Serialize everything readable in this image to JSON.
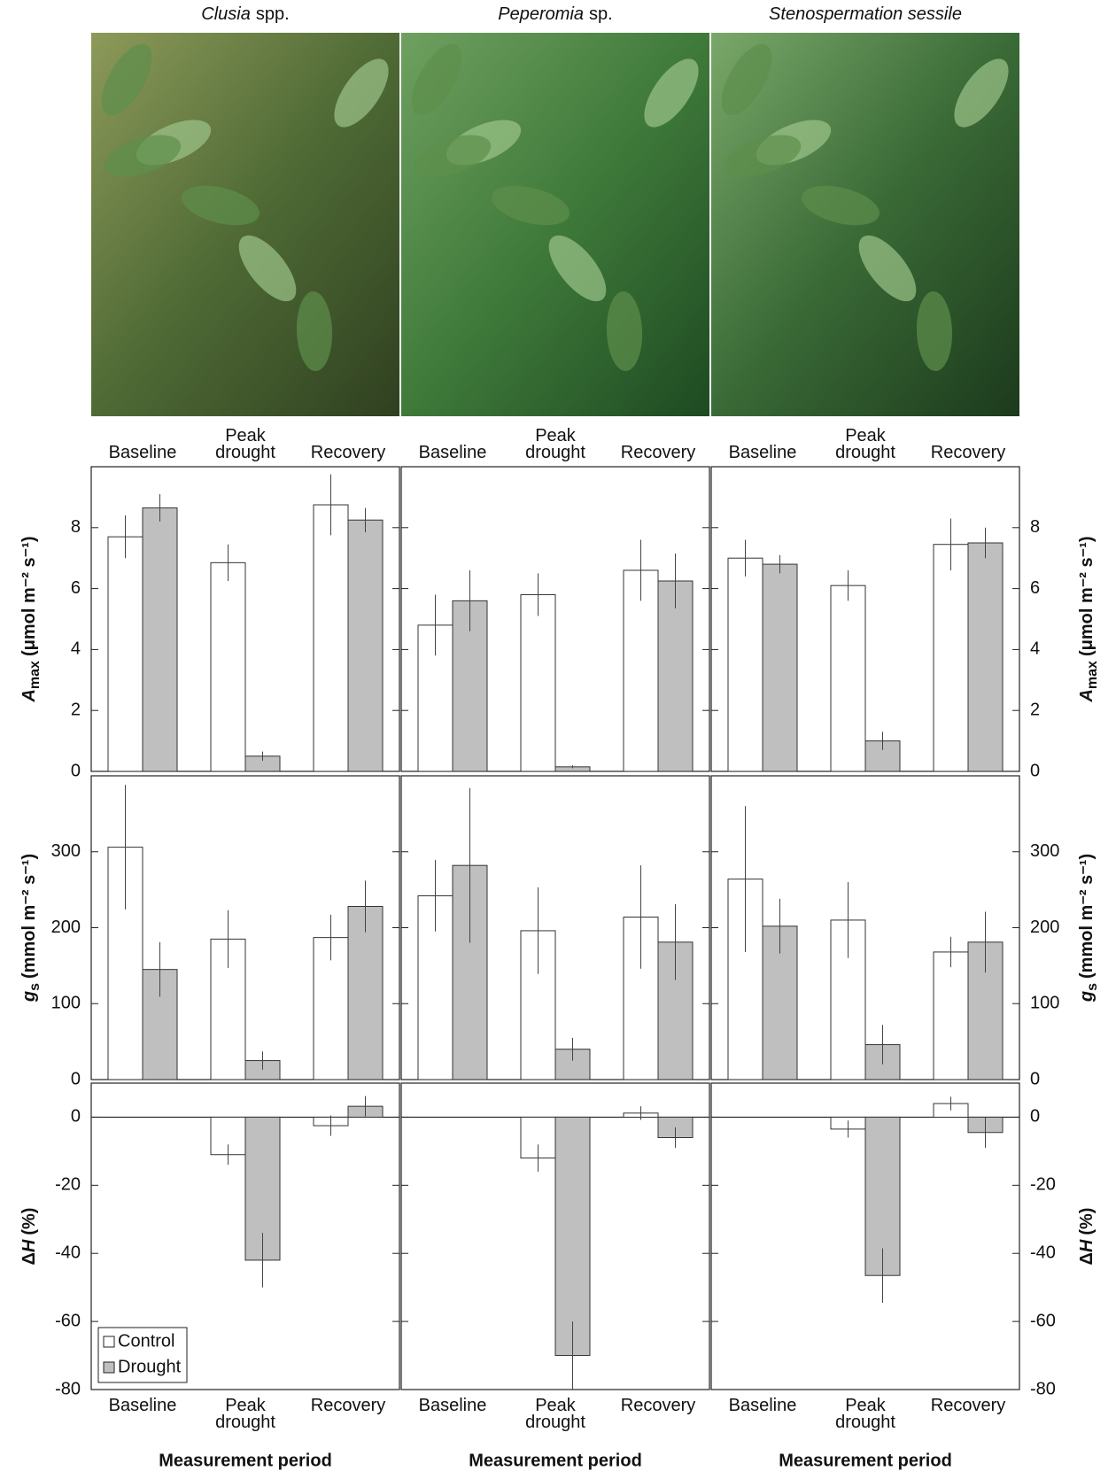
{
  "columns": [
    {
      "genus": "Clusia",
      "rest": "spp."
    },
    {
      "genus": "Peperomia",
      "rest": "sp."
    },
    {
      "genus": "Stenospermation sessile"
    }
  ],
  "chart_data": [
    {
      "type": "bar",
      "categories": [
        "Baseline",
        "Peak drought",
        "Recovery"
      ],
      "ylim": [
        0,
        10
      ],
      "yticks": [
        0,
        2,
        4,
        6,
        8
      ],
      "ylabel": {
        "symbol": "A",
        "subscript": "max",
        "unit": "(μmol m⁻² s⁻¹)"
      },
      "series": [
        {
          "color": "#ffffff",
          "values": [
            7.7,
            6.85,
            8.75
          ],
          "errors": [
            0.7,
            0.6,
            1.0
          ]
        },
        {
          "color": "#bfbfbf",
          "values": [
            8.65,
            0.5,
            8.25
          ],
          "errors": [
            0.45,
            0.15,
            0.4
          ]
        }
      ]
    },
    {
      "type": "bar",
      "categories": [
        "Baseline",
        "Peak drought",
        "Recovery"
      ],
      "ylim": [
        0,
        10
      ],
      "yticks": [
        0,
        2,
        4,
        6,
        8
      ],
      "series": [
        {
          "color": "#ffffff",
          "values": [
            4.8,
            5.8,
            6.6
          ],
          "errors": [
            1.0,
            0.7,
            1.0
          ]
        },
        {
          "color": "#bfbfbf",
          "values": [
            5.6,
            0.15,
            6.25
          ],
          "errors": [
            1.0,
            0.05,
            0.9
          ]
        }
      ]
    },
    {
      "type": "bar",
      "categories": [
        "Baseline",
        "Peak drought",
        "Recovery"
      ],
      "ylim": [
        0,
        10
      ],
      "yticks": [
        0,
        2,
        4,
        6,
        8
      ],
      "ylabel": {
        "symbol": "A",
        "subscript": "max",
        "unit": "(μmol m⁻² s⁻¹)"
      },
      "series": [
        {
          "color": "#ffffff",
          "values": [
            7.0,
            6.1,
            7.45
          ],
          "errors": [
            0.6,
            0.5,
            0.85
          ]
        },
        {
          "color": "#bfbfbf",
          "values": [
            6.8,
            1.0,
            7.5
          ],
          "errors": [
            0.3,
            0.3,
            0.5
          ]
        }
      ]
    },
    {
      "type": "bar",
      "ylim": [
        0,
        400
      ],
      "yticks": [
        0,
        100,
        200,
        300
      ],
      "ylabel": {
        "symbol": "g",
        "subscript": "s",
        "unit": "(mmol m⁻² s⁻¹)"
      },
      "series": [
        {
          "color": "#ffffff",
          "values": [
            306,
            185,
            187
          ],
          "errors": [
            82,
            38,
            30
          ]
        },
        {
          "color": "#bfbfbf",
          "values": [
            145,
            25,
            228
          ],
          "errors": [
            36,
            12,
            34
          ]
        }
      ]
    },
    {
      "type": "bar",
      "ylim": [
        0,
        400
      ],
      "yticks": [
        0,
        100,
        200,
        300
      ],
      "series": [
        {
          "color": "#ffffff",
          "values": [
            242,
            196,
            214
          ],
          "errors": [
            47,
            57,
            68
          ]
        },
        {
          "color": "#bfbfbf",
          "values": [
            282,
            40,
            181
          ],
          "errors": [
            102,
            15,
            50
          ]
        }
      ]
    },
    {
      "type": "bar",
      "ylim": [
        0,
        400
      ],
      "yticks": [
        0,
        100,
        200,
        300
      ],
      "ylabel": {
        "symbol": "g",
        "subscript": "s",
        "unit": "(mmol m⁻² s⁻¹)"
      },
      "series": [
        {
          "color": "#ffffff",
          "values": [
            264,
            210,
            168
          ],
          "errors": [
            96,
            50,
            20
          ]
        },
        {
          "color": "#bfbfbf",
          "values": [
            202,
            46,
            181
          ],
          "errors": [
            36,
            26,
            40
          ]
        }
      ]
    },
    {
      "type": "bar",
      "categories": [
        "Baseline",
        "Peak drought",
        "Recovery"
      ],
      "xlabel": "Measurement period",
      "ylim": [
        -80,
        10
      ],
      "yticks": [
        -80,
        -60,
        -40,
        -20,
        0
      ],
      "ylabel": {
        "prefix": "Δ",
        "symbol": "H",
        "unit": "(%)"
      },
      "legend": "lower left",
      "series": [
        {
          "name": "Control",
          "color": "#ffffff",
          "values": [
            null,
            -11,
            -2.5
          ],
          "errors": [
            null,
            3,
            3
          ]
        },
        {
          "name": "Drought",
          "color": "#bfbfbf",
          "values": [
            null,
            -42,
            3.2
          ],
          "errors": [
            null,
            8,
            3
          ]
        }
      ]
    },
    {
      "type": "bar",
      "categories": [
        "Baseline",
        "Peak drought",
        "Recovery"
      ],
      "xlabel": "Measurement period",
      "ylim": [
        -80,
        10
      ],
      "yticks": [
        -80,
        -60,
        -40,
        -20,
        0
      ],
      "series": [
        {
          "color": "#ffffff",
          "values": [
            null,
            -12,
            1.2
          ],
          "errors": [
            null,
            4,
            2
          ]
        },
        {
          "color": "#bfbfbf",
          "values": [
            null,
            -70,
            -6
          ],
          "errors": [
            null,
            10,
            3
          ]
        }
      ]
    },
    {
      "type": "bar",
      "categories": [
        "Baseline",
        "Peak drought",
        "Recovery"
      ],
      "xlabel": "Measurement period",
      "ylim": [
        -80,
        10
      ],
      "yticks": [
        -80,
        -60,
        -40,
        -20,
        0
      ],
      "ylabel": {
        "prefix": "Δ",
        "symbol": "H",
        "unit": "(%)"
      },
      "series": [
        {
          "color": "#ffffff",
          "values": [
            null,
            -3.5,
            4
          ],
          "errors": [
            null,
            2.5,
            2
          ]
        },
        {
          "color": "#bfbfbf",
          "values": [
            null,
            -46.5,
            -4.5
          ],
          "errors": [
            null,
            8,
            4.5
          ]
        }
      ]
    }
  ]
}
